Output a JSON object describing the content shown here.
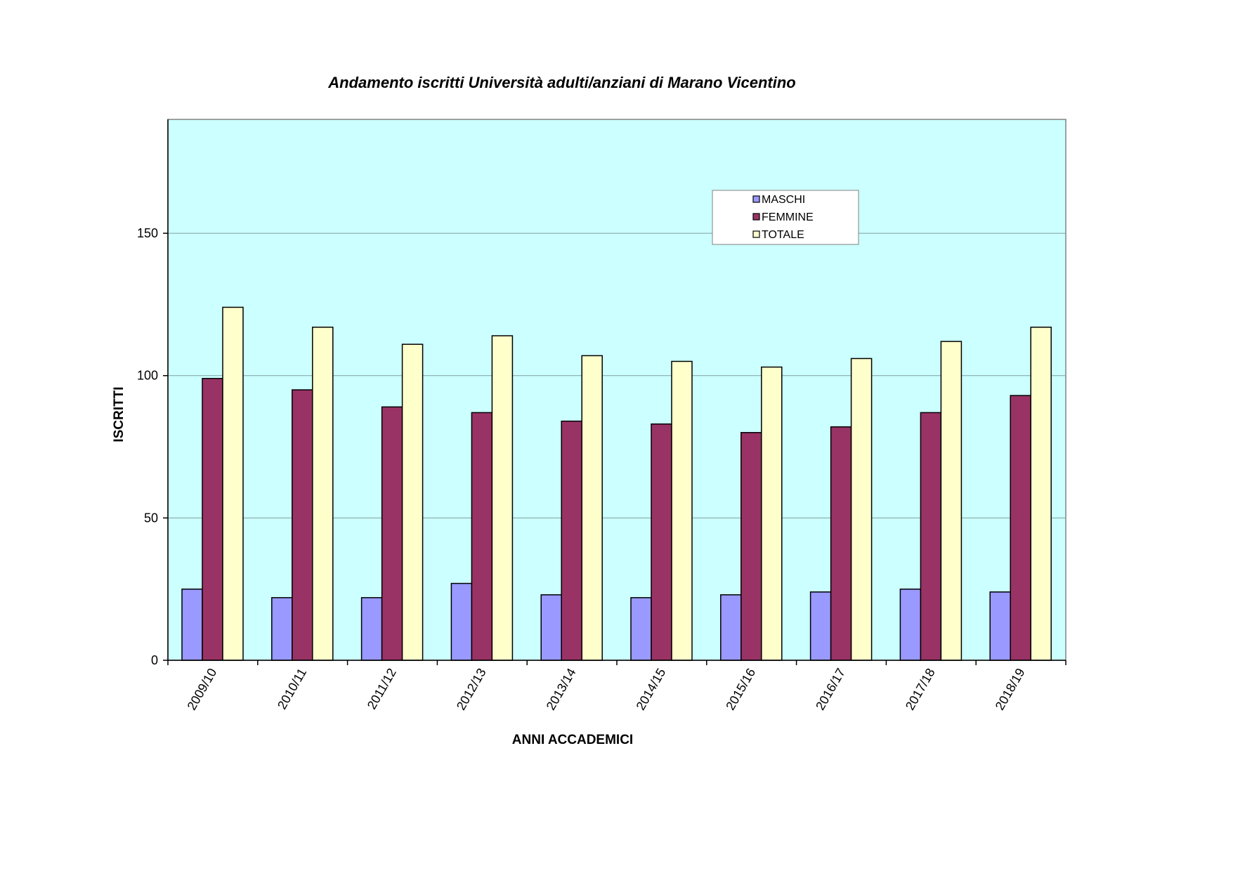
{
  "chart_data": {
    "type": "bar",
    "title": "Andamento iscritti Università adulti/anziani di Marano Vicentino",
    "xlabel": "ANNI ACCADEMICI",
    "ylabel": "ISCRITTI",
    "ylim": [
      0,
      190
    ],
    "yticks": [
      0,
      50,
      100,
      150
    ],
    "grid": true,
    "legend_position": "top-right",
    "categories": [
      "2009/10",
      "2010/11",
      "2011/12",
      "2012/13",
      "2013/14",
      "2014/15",
      "2015/16",
      "2016/17",
      "2017/18",
      "2018/19"
    ],
    "series": [
      {
        "name": "MASCHI",
        "color": "#9999ff",
        "values": [
          25,
          22,
          22,
          27,
          23,
          22,
          23,
          24,
          25,
          24
        ]
      },
      {
        "name": "FEMMINE",
        "color": "#993366",
        "values": [
          99,
          95,
          89,
          87,
          84,
          83,
          80,
          82,
          87,
          93
        ]
      },
      {
        "name": "TOTALE",
        "color": "#ffffcc",
        "values": [
          124,
          117,
          111,
          114,
          107,
          105,
          103,
          106,
          112,
          117
        ]
      }
    ],
    "plot_background": "#ccffff",
    "grid_color": "#7f9f9f"
  }
}
